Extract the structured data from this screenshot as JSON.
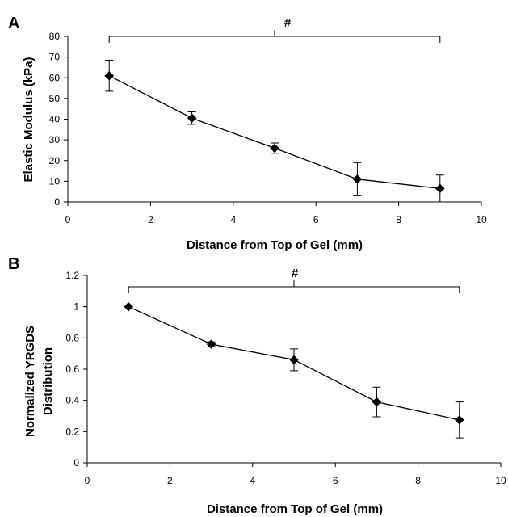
{
  "chart_data": [
    {
      "panel_label": "A",
      "type": "line",
      "xlabel": "Distance from Top of Gel (mm)",
      "ylabel": "Elastic Modulus (kPa)",
      "xlim": [
        0,
        10
      ],
      "ylim": [
        0,
        80
      ],
      "xticks": [
        0,
        2,
        4,
        6,
        8,
        10
      ],
      "yticks": [
        0,
        10,
        20,
        30,
        40,
        50,
        60,
        70,
        80
      ],
      "xtick_labels": [
        "0",
        "2",
        "4",
        "6",
        "8",
        "10"
      ],
      "ytick_labels": [
        "0",
        "10",
        "20",
        "30",
        "40",
        "50",
        "60",
        "70",
        "80"
      ],
      "series": [
        {
          "x": [
            1,
            3,
            5,
            7,
            9
          ],
          "y": [
            61,
            40.5,
            26,
            11,
            6.5
          ],
          "error": [
            7.5,
            3,
            2.5,
            8,
            6.5
          ]
        }
      ],
      "significance": {
        "label": "#",
        "x_from": 1,
        "x_to": 9,
        "y": 80
      },
      "grid": false,
      "marker": "diamond",
      "color": "#000000"
    },
    {
      "panel_label": "B",
      "type": "line",
      "xlabel": "Distance from Top of Gel (mm)",
      "ylabel_lines": [
        "Normalized YRGDS",
        "Distribution"
      ],
      "xlim": [
        0,
        10
      ],
      "ylim": [
        0,
        1.2
      ],
      "xticks": [
        0,
        2,
        4,
        6,
        8,
        10
      ],
      "yticks": [
        0,
        0.2,
        0.4,
        0.6,
        0.8,
        1,
        1.2
      ],
      "xtick_labels": [
        "0",
        "2",
        "4",
        "6",
        "8",
        "10"
      ],
      "ytick_labels": [
        "0",
        "0.2",
        "0.4",
        "0.6",
        "0.8",
        "1",
        "1.2"
      ],
      "series": [
        {
          "x": [
            1,
            3,
            5,
            7,
            9
          ],
          "y": [
            1.0,
            0.76,
            0.66,
            0.39,
            0.275
          ],
          "error": [
            0,
            0.015,
            0.07,
            0.095,
            0.115
          ]
        }
      ],
      "significance": {
        "label": "#",
        "x_from": 1,
        "x_to": 9,
        "y": 1.13
      },
      "grid": false,
      "marker": "diamond",
      "color": "#000000"
    }
  ]
}
